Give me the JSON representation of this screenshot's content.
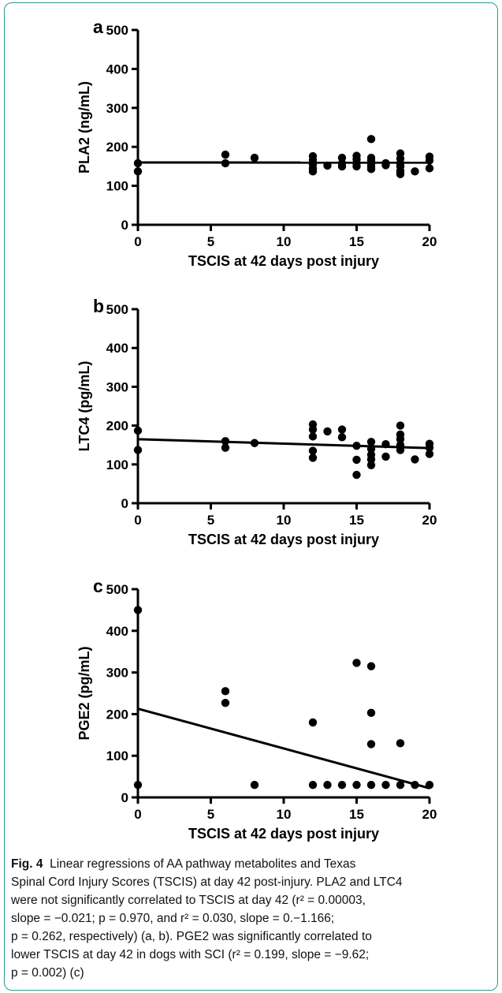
{
  "chart_data": [
    {
      "type": "scatter",
      "panel_label": "a",
      "xlabel": "TSCIS at 42 days post injury",
      "ylabel": "PLA2 (ng/mL)",
      "xlim": [
        0,
        20
      ],
      "ylim": [
        0,
        500
      ],
      "xticks": [
        0,
        5,
        10,
        15,
        20
      ],
      "yticks": [
        0,
        100,
        200,
        300,
        400,
        500
      ],
      "points": [
        [
          0,
          158
        ],
        [
          0,
          137
        ],
        [
          6,
          180
        ],
        [
          6,
          158
        ],
        [
          8,
          172
        ],
        [
          12,
          176
        ],
        [
          12,
          166
        ],
        [
          12,
          155
        ],
        [
          12,
          145
        ],
        [
          12,
          137
        ],
        [
          13,
          152
        ],
        [
          14,
          172
        ],
        [
          14,
          158
        ],
        [
          14,
          150
        ],
        [
          15,
          177
        ],
        [
          15,
          168
        ],
        [
          15,
          158
        ],
        [
          15,
          150
        ],
        [
          16,
          220
        ],
        [
          16,
          172
        ],
        [
          16,
          165
        ],
        [
          16,
          158
        ],
        [
          16,
          150
        ],
        [
          16,
          143
        ],
        [
          17,
          158
        ],
        [
          17,
          153
        ],
        [
          18,
          183
        ],
        [
          18,
          170
        ],
        [
          18,
          158
        ],
        [
          18,
          150
        ],
        [
          18,
          138
        ],
        [
          18,
          130
        ],
        [
          19,
          137
        ],
        [
          20,
          175
        ],
        [
          20,
          165
        ],
        [
          20,
          145
        ]
      ],
      "regression": {
        "x": [
          0,
          20
        ],
        "y": [
          160,
          159.6
        ]
      }
    },
    {
      "type": "scatter",
      "panel_label": "b",
      "xlabel": "TSCIS at 42 days post injury",
      "ylabel": "LTC4 (pg/mL)",
      "xlim": [
        0,
        20
      ],
      "ylim": [
        0,
        500
      ],
      "xticks": [
        0,
        5,
        10,
        15,
        20
      ],
      "yticks": [
        0,
        100,
        200,
        300,
        400,
        500
      ],
      "points": [
        [
          0,
          187
        ],
        [
          0,
          137
        ],
        [
          6,
          160
        ],
        [
          6,
          143
        ],
        [
          8,
          155
        ],
        [
          12,
          203
        ],
        [
          12,
          190
        ],
        [
          12,
          172
        ],
        [
          12,
          135
        ],
        [
          12,
          117
        ],
        [
          13,
          185
        ],
        [
          14,
          190
        ],
        [
          14,
          170
        ],
        [
          15,
          148
        ],
        [
          15,
          112
        ],
        [
          15,
          73
        ],
        [
          16,
          158
        ],
        [
          16,
          140
        ],
        [
          16,
          125
        ],
        [
          16,
          113
        ],
        [
          16,
          98
        ],
        [
          17,
          152
        ],
        [
          17,
          120
        ],
        [
          18,
          200
        ],
        [
          18,
          177
        ],
        [
          18,
          165
        ],
        [
          18,
          150
        ],
        [
          18,
          137
        ],
        [
          19,
          113
        ],
        [
          20,
          153
        ],
        [
          20,
          143
        ],
        [
          20,
          127
        ]
      ],
      "regression": {
        "x": [
          0,
          20
        ],
        "y": [
          165,
          142
        ]
      }
    },
    {
      "type": "scatter",
      "panel_label": "c",
      "xlabel": "TSCIS at 42 days post injury",
      "ylabel": "PGE2 (pg/mL)",
      "xlim": [
        0,
        20
      ],
      "ylim": [
        0,
        500
      ],
      "xticks": [
        0,
        5,
        10,
        15,
        20
      ],
      "yticks": [
        0,
        100,
        200,
        300,
        400,
        500
      ],
      "points": [
        [
          0,
          450
        ],
        [
          0,
          30
        ],
        [
          6,
          255
        ],
        [
          6,
          227
        ],
        [
          8,
          30
        ],
        [
          12,
          180
        ],
        [
          12,
          30
        ],
        [
          13,
          30
        ],
        [
          14,
          30
        ],
        [
          15,
          323
        ],
        [
          15,
          30
        ],
        [
          16,
          315
        ],
        [
          16,
          203
        ],
        [
          16,
          128
        ],
        [
          16,
          30
        ],
        [
          17,
          30
        ],
        [
          18,
          130
        ],
        [
          18,
          30
        ],
        [
          19,
          30
        ],
        [
          20,
          30
        ]
      ],
      "regression": {
        "x": [
          0,
          20
        ],
        "y": [
          213,
          22
        ]
      }
    }
  ],
  "caption": {
    "fig_label": "Fig. 4",
    "lines": [
      "Linear regressions of AA pathway metabolites and Texas",
      "Spinal Cord Injury Scores (TSCIS) at day 42 post-injury. PLA2 and LTC4",
      "were not significantly correlated to TSCIS at day 42 (r² = 0.00003,",
      "slope = −0.021; p = 0.970, and r² = 0.030, slope = 0.−1.166;",
      "p = 0.262, respectively) (a, b). PGE2 was significantly correlated to",
      "lower TSCIS at day 42 in dogs with SCI (r² = 0.199, slope = −9.62;",
      "p = 0.002) (c)"
    ]
  }
}
